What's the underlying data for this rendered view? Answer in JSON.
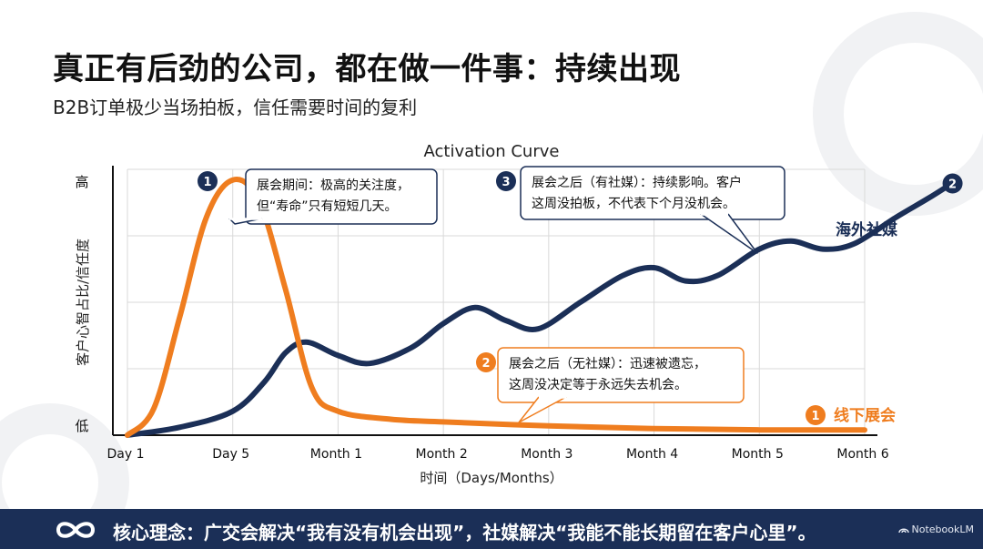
{
  "header": {
    "title": "真正有后劲的公司，都在做一件事：持续出现",
    "subtitle": "B2B订单极少当场拍板，信任需要时间的复利"
  },
  "footer": {
    "text": "核心理念：广交会解决“我有没有机会出现”，社媒解决“我能不能长期留在客户心里”。",
    "brand": "NotebookLM",
    "logo_icon": "infinity-icon"
  },
  "colors": {
    "orange": "#ef7d1f",
    "navy": "#1b2f57",
    "grid": "#d9d9d9"
  },
  "chart_data": {
    "type": "line",
    "title": "Activation Curve",
    "xlabel": "时间（Days/Months）",
    "ylabel": "客户心智占比/信任度",
    "y_tick_labels": [
      "低",
      "高"
    ],
    "ylim": [
      0,
      100
    ],
    "categories": [
      "Day 1",
      "Day 5",
      "Month 1",
      "Month 2",
      "Month 3",
      "Month 4",
      "Month 5",
      "Month 6"
    ],
    "grid": true,
    "series": [
      {
        "name": "线下展会",
        "badge": "1",
        "color": "#ef7d1f",
        "points": [
          [
            0,
            0
          ],
          [
            0.25,
            10
          ],
          [
            0.5,
            45
          ],
          [
            0.75,
            82
          ],
          [
            1,
            96
          ],
          [
            1.25,
            88
          ],
          [
            1.5,
            55
          ],
          [
            1.75,
            18
          ],
          [
            2,
            9
          ],
          [
            2.5,
            6
          ],
          [
            3,
            5
          ],
          [
            4,
            3.5
          ],
          [
            5,
            2.5
          ],
          [
            6,
            2
          ],
          [
            7,
            2
          ]
        ]
      },
      {
        "name": "海外社媒",
        "badge": "2",
        "color": "#1b2f57",
        "points": [
          [
            0,
            0
          ],
          [
            0.5,
            3
          ],
          [
            1,
            9
          ],
          [
            1.3,
            20
          ],
          [
            1.5,
            31
          ],
          [
            1.7,
            35
          ],
          [
            2,
            30
          ],
          [
            2.3,
            27
          ],
          [
            2.7,
            33
          ],
          [
            3,
            42
          ],
          [
            3.3,
            48
          ],
          [
            3.6,
            43
          ],
          [
            3.9,
            40
          ],
          [
            4.3,
            50
          ],
          [
            4.7,
            60
          ],
          [
            5,
            63
          ],
          [
            5.3,
            58
          ],
          [
            5.6,
            60
          ],
          [
            6,
            70
          ],
          [
            6.3,
            73
          ],
          [
            6.6,
            70
          ],
          [
            6.9,
            72
          ],
          [
            7.3,
            82
          ],
          [
            7.6,
            89
          ],
          [
            7.8,
            94
          ]
        ]
      }
    ],
    "annotations": [
      {
        "badge": "1",
        "badge_color": "#1b2f57",
        "border_color": "#1b2f57",
        "lines": [
          "展会期间：极高的关注度，",
          "但“寿命”只有短短几天。"
        ]
      },
      {
        "badge": "3",
        "badge_color": "#1b2f57",
        "border_color": "#1b2f57",
        "lines": [
          "展会之后（有社媒）：持续影响。客户",
          "这周没拍板，不代表下个月没机会。"
        ]
      },
      {
        "badge": "2",
        "badge_color": "#ef7d1f",
        "border_color": "#ef7d1f",
        "lines": [
          "展会之后（无社媒）：迅速被遗忘，",
          "这周没决定等于永远失去机会。"
        ]
      }
    ]
  }
}
